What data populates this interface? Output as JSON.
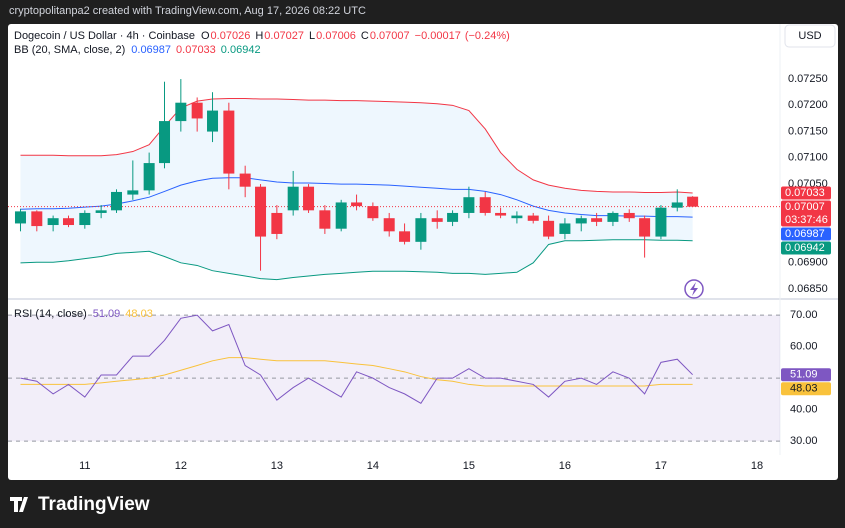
{
  "header": {
    "watermark": "cryptopolitanpa2 created with TradingView.com, Aug 17, 2026 08:22 UTC"
  },
  "currency_button": "USD",
  "logo": "TradingView",
  "chart_data": [
    {
      "type": "candlestick",
      "title": "Dogecoin / US Dollar · 4h · Coinbase",
      "ohlc_labels": [
        "O",
        "H",
        "L",
        "C"
      ],
      "change": {
        "value": -0.00017,
        "label": "−0.00017"
      },
      "change_pct": {
        "value": -0.24,
        "label": "(−0.24%)"
      },
      "countdown": "03:37:46",
      "x": [
        10.33,
        10.5,
        10.67,
        10.83,
        11,
        11.17,
        11.33,
        11.5,
        11.67,
        11.83,
        12,
        12.17,
        12.33,
        12.5,
        12.67,
        12.83,
        13,
        13.17,
        13.33,
        13.5,
        13.67,
        13.83,
        14,
        14.17,
        14.33,
        14.5,
        14.67,
        14.83,
        15,
        15.17,
        15.33,
        15.5,
        15.67,
        15.83,
        16,
        16.17,
        16.33,
        16.5,
        16.67,
        16.83,
        17,
        17.17,
        17.33
      ],
      "xlim": [
        10.2,
        18.24
      ],
      "xticks": [
        11,
        12,
        13,
        14,
        15,
        16,
        17,
        18
      ],
      "ylim": [
        0.06833,
        0.07353
      ],
      "yticks": [
        {
          "value": 0.0725,
          "label": "0.07250"
        },
        {
          "value": 0.072,
          "label": "0.07200"
        },
        {
          "value": 0.0715,
          "label": "0.07150"
        },
        {
          "value": 0.071,
          "label": "0.07100"
        },
        {
          "value": 0.0705,
          "label": "0.07050"
        },
        {
          "value": 0.069,
          "label": "0.06900"
        },
        {
          "value": 0.0685,
          "label": "0.06850"
        }
      ],
      "candles": {
        "up_color": "#089981",
        "down_color": "#f23645",
        "open": [
          0.06975,
          0.06998,
          0.06972,
          0.06985,
          0.06972,
          0.06995,
          0.07,
          0.0703,
          0.07038,
          0.0709,
          0.0717,
          0.07205,
          0.0715,
          0.0719,
          0.0707,
          0.07045,
          0.06995,
          0.07,
          0.07045,
          0.07,
          0.06965,
          0.07015,
          0.07008,
          0.06985,
          0.0696,
          0.0694,
          0.06985,
          0.06978,
          0.06995,
          0.07025,
          0.06995,
          0.06985,
          0.0699,
          0.0698,
          0.06955,
          0.06975,
          0.06985,
          0.06978,
          0.06995,
          0.06985,
          0.0695,
          0.07005,
          0.07026
        ],
        "high": [
          0.07003,
          0.07,
          0.0699,
          0.0699,
          0.07,
          0.0701,
          0.0704,
          0.07095,
          0.0711,
          0.07245,
          0.0725,
          0.07215,
          0.07225,
          0.07205,
          0.07085,
          0.0705,
          0.0701,
          0.07075,
          0.0705,
          0.0701,
          0.0702,
          0.0703,
          0.07015,
          0.06995,
          0.06975,
          0.06995,
          0.07,
          0.07,
          0.07045,
          0.07035,
          0.07005,
          0.06998,
          0.06995,
          0.0699,
          0.06985,
          0.0699,
          0.06995,
          0.06998,
          0.07002,
          0.0699,
          0.0701,
          0.0704,
          0.07027
        ],
        "low": [
          0.0696,
          0.0696,
          0.0696,
          0.06968,
          0.06965,
          0.06985,
          0.06995,
          0.0702,
          0.0703,
          0.0708,
          0.0715,
          0.0715,
          0.0713,
          0.0704,
          0.07025,
          0.06885,
          0.06945,
          0.0699,
          0.06995,
          0.06955,
          0.0696,
          0.07,
          0.0698,
          0.0695,
          0.06935,
          0.06925,
          0.06965,
          0.0697,
          0.06985,
          0.0699,
          0.06985,
          0.06975,
          0.06975,
          0.06945,
          0.06945,
          0.0696,
          0.0697,
          0.0697,
          0.06978,
          0.0691,
          0.06945,
          0.06998,
          0.07006
        ],
        "close": [
          0.06998,
          0.0697,
          0.06985,
          0.06972,
          0.06995,
          0.07,
          0.07035,
          0.07038,
          0.0709,
          0.0717,
          0.07205,
          0.07175,
          0.0719,
          0.0707,
          0.07045,
          0.0695,
          0.06955,
          0.07045,
          0.07,
          0.06965,
          0.07015,
          0.07008,
          0.06985,
          0.0696,
          0.0694,
          0.06985,
          0.06978,
          0.06995,
          0.07025,
          0.06995,
          0.0699,
          0.0699,
          0.0698,
          0.0695,
          0.06975,
          0.06985,
          0.06978,
          0.06995,
          0.06985,
          0.0695,
          0.07005,
          0.07015,
          0.07007
        ]
      },
      "bb": {
        "name": "BB (20, SMA, close, 2)",
        "fill": "#2196f3",
        "basis": {
          "color": "#2962ff",
          "values": [
            0.07002,
            0.07003,
            0.07003,
            0.07004,
            0.07006,
            0.07008,
            0.07012,
            0.07018,
            0.07025,
            0.07036,
            0.07048,
            0.07056,
            0.07061,
            0.07062,
            0.07062,
            0.07058,
            0.07054,
            0.07052,
            0.07052,
            0.07051,
            0.0705,
            0.0705,
            0.07049,
            0.07048,
            0.07046,
            0.07044,
            0.07042,
            0.0704,
            0.0704,
            0.07036,
            0.0703,
            0.0702,
            0.07008,
            0.07,
            0.06995,
            0.06992,
            0.0699,
            0.0699,
            0.06989,
            0.06989,
            0.06988,
            0.06988,
            0.06987
          ]
        },
        "upper": {
          "color": "#f23645",
          "values": [
            0.07105,
            0.07105,
            0.07105,
            0.07104,
            0.07104,
            0.07104,
            0.07106,
            0.07112,
            0.07125,
            0.0716,
            0.07195,
            0.07208,
            0.07212,
            0.07213,
            0.07213,
            0.07212,
            0.07212,
            0.07211,
            0.0721,
            0.0721,
            0.07209,
            0.07209,
            0.07208,
            0.07207,
            0.07206,
            0.07205,
            0.07203,
            0.072,
            0.0719,
            0.07155,
            0.0711,
            0.07078,
            0.07058,
            0.07048,
            0.07042,
            0.07038,
            0.07036,
            0.07035,
            0.07035,
            0.07034,
            0.07034,
            0.07035,
            0.07033
          ]
        },
        "lower": {
          "color": "#089981",
          "values": [
            0.069,
            0.06901,
            0.06901,
            0.06904,
            0.06908,
            0.06912,
            0.06918,
            0.0692,
            0.06922,
            0.06912,
            0.069,
            0.06895,
            0.06885,
            0.0688,
            0.06875,
            0.0687,
            0.06868,
            0.06872,
            0.06875,
            0.06878,
            0.0688,
            0.06882,
            0.06884,
            0.06884,
            0.06884,
            0.06883,
            0.06882,
            0.0688,
            0.0688,
            0.06878,
            0.0688,
            0.06882,
            0.069,
            0.06935,
            0.06942,
            0.06942,
            0.06943,
            0.06944,
            0.06944,
            0.06944,
            0.06943,
            0.06943,
            0.06942
          ]
        }
      }
    },
    {
      "type": "line",
      "title": "RSI (14, close)",
      "ylim": [
        25.6,
        74.8
      ],
      "yticks": [
        {
          "value": 70,
          "label": "70.00"
        },
        {
          "value": 60,
          "label": "60.00"
        },
        {
          "value": 40,
          "label": "40.00"
        },
        {
          "value": 30,
          "label": "30.00"
        }
      ],
      "band": [
        30,
        70
      ],
      "midline": 50,
      "band_color": "#7e57c2",
      "series": [
        {
          "color": "#7e57c2",
          "values": [
            50,
            49,
            45,
            48,
            44,
            51,
            51,
            57,
            57,
            62,
            69,
            70,
            65,
            67,
            54,
            51,
            43,
            47,
            50,
            47,
            44,
            52,
            50,
            47,
            45,
            42,
            50,
            50,
            53,
            50,
            50,
            49,
            48,
            44,
            49,
            50,
            48,
            52,
            50,
            45,
            55,
            56,
            51.09
          ]
        },
        {
          "color": "#f9c23c",
          "values": [
            48,
            48,
            48,
            48,
            48,
            48.5,
            49,
            49.5,
            50,
            51,
            52.5,
            54,
            55.5,
            56.5,
            56.5,
            56,
            55.5,
            55.5,
            55.5,
            55.5,
            55,
            54.5,
            54,
            53,
            52,
            50.5,
            49.5,
            49,
            48,
            47.5,
            47.5,
            47.5,
            47.5,
            47.5,
            47.5,
            47.5,
            47.5,
            47.5,
            47.5,
            47.5,
            48,
            48,
            48.03
          ]
        }
      ]
    }
  ]
}
